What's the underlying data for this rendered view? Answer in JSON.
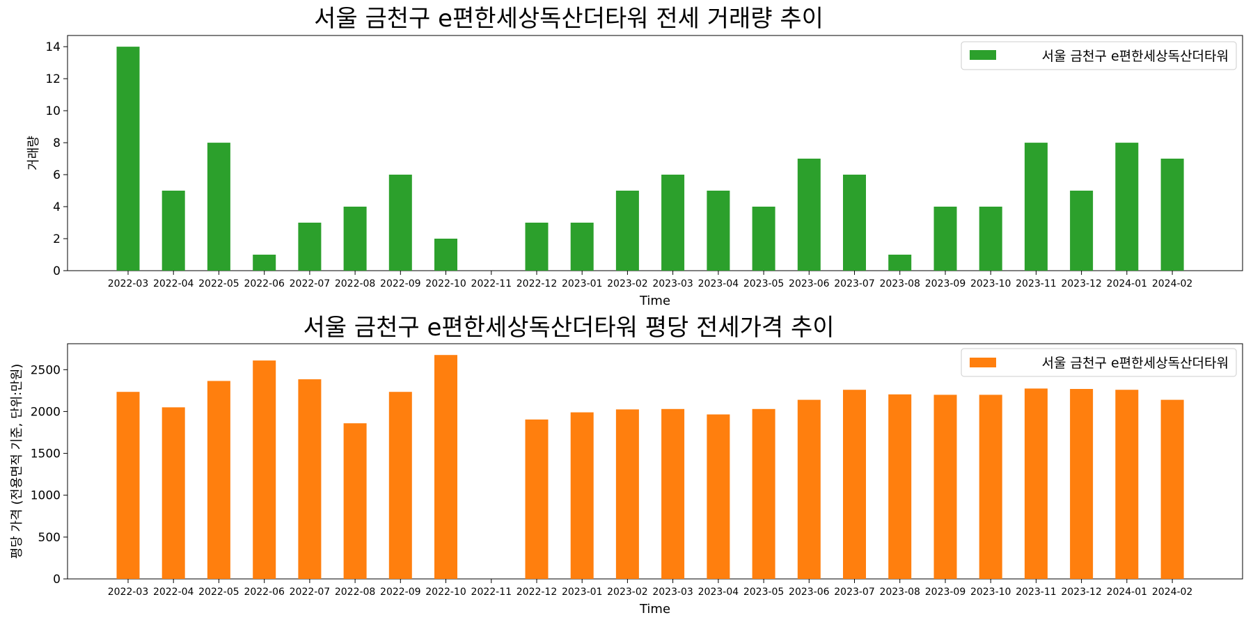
{
  "chart_data": [
    {
      "type": "bar",
      "title": "서울 금천구 e편한세상독산더타워 전세 거래량 추이",
      "xlabel": "Time",
      "ylabel": "거래량",
      "ylim": [
        0,
        14.7
      ],
      "yticks": [
        0,
        2,
        4,
        6,
        8,
        10,
        12,
        14
      ],
      "grid": false,
      "legend_position": "top-right",
      "categories": [
        "2022-03",
        "2022-04",
        "2022-05",
        "2022-06",
        "2022-07",
        "2022-08",
        "2022-09",
        "2022-10",
        "2022-11",
        "2022-12",
        "2023-01",
        "2023-02",
        "2023-03",
        "2023-04",
        "2023-05",
        "2023-06",
        "2023-07",
        "2023-08",
        "2023-09",
        "2023-10",
        "2023-11",
        "2023-12",
        "2024-01",
        "2024-02"
      ],
      "series": [
        {
          "name": "서울 금천구 e편한세상독산더타워",
          "color": "#2ca02c",
          "values": [
            14,
            5,
            8,
            1,
            3,
            4,
            6,
            2,
            0,
            3,
            3,
            5,
            6,
            5,
            4,
            7,
            6,
            1,
            4,
            4,
            8,
            5,
            8,
            7
          ]
        }
      ]
    },
    {
      "type": "bar",
      "title": "서울 금천구 e편한세상독산더타워 평당 전세가격 추이",
      "xlabel": "Time",
      "ylabel": "평당 가격 (전용면적 기준, 단위:만원)",
      "ylim": [
        0,
        2810
      ],
      "yticks": [
        0,
        500,
        1000,
        1500,
        2000,
        2500
      ],
      "grid": false,
      "legend_position": "top-right",
      "categories": [
        "2022-03",
        "2022-04",
        "2022-05",
        "2022-06",
        "2022-07",
        "2022-08",
        "2022-09",
        "2022-10",
        "2022-11",
        "2022-12",
        "2023-01",
        "2023-02",
        "2023-03",
        "2023-04",
        "2023-05",
        "2023-06",
        "2023-07",
        "2023-08",
        "2023-09",
        "2023-10",
        "2023-11",
        "2023-12",
        "2024-01",
        "2024-02"
      ],
      "series": [
        {
          "name": "서울 금천구 e편한세상독산더타워",
          "color": "#ff7f0e",
          "values": [
            2235,
            2050,
            2365,
            2610,
            2385,
            1860,
            2235,
            2675,
            null,
            1905,
            1990,
            2025,
            2030,
            1965,
            2030,
            2140,
            2260,
            2205,
            2200,
            2200,
            2275,
            2270,
            2260,
            2140
          ]
        }
      ]
    }
  ]
}
